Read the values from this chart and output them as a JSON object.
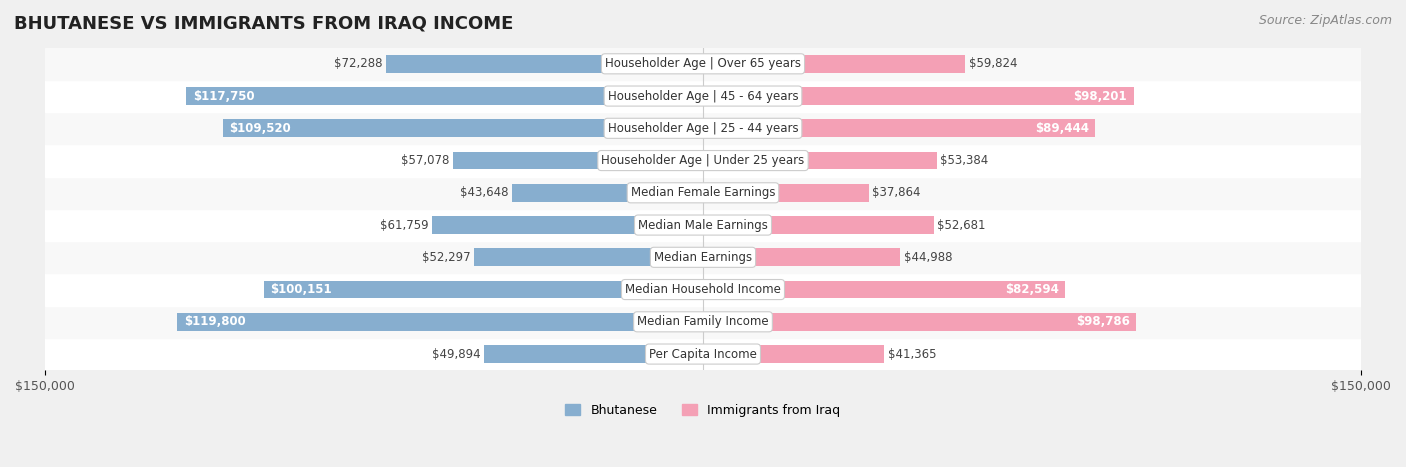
{
  "title": "BHUTANESE VS IMMIGRANTS FROM IRAQ INCOME",
  "source": "Source: ZipAtlas.com",
  "categories": [
    "Per Capita Income",
    "Median Family Income",
    "Median Household Income",
    "Median Earnings",
    "Median Male Earnings",
    "Median Female Earnings",
    "Householder Age | Under 25 years",
    "Householder Age | 25 - 44 years",
    "Householder Age | 45 - 64 years",
    "Householder Age | Over 65 years"
  ],
  "bhutanese": [
    49894,
    119800,
    100151,
    52297,
    61759,
    43648,
    57078,
    109520,
    117750,
    72288
  ],
  "iraq": [
    41365,
    98786,
    82594,
    44988,
    52681,
    37864,
    53384,
    89444,
    98201,
    59824
  ],
  "max_val": 150000,
  "blue_color": "#87AECF",
  "blue_color_dark": "#6699CC",
  "pink_color": "#F4A0B5",
  "pink_color_dark": "#F080A0",
  "blue_label_color_light": "#555555",
  "blue_label_color_dark": "#ffffff",
  "pink_label_color_light": "#555555",
  "pink_label_color_dark": "#ffffff",
  "background_color": "#f0f0f0",
  "row_bg_color": "#ffffff",
  "row_alt_bg_color": "#f8f8f8",
  "label_threshold": 80000,
  "bar_height": 0.55,
  "legend_blue": "Bhutanese",
  "legend_pink": "Immigrants from Iraq",
  "title_fontsize": 13,
  "source_fontsize": 9,
  "tick_fontsize": 9,
  "label_fontsize": 8.5,
  "category_fontsize": 8.5
}
